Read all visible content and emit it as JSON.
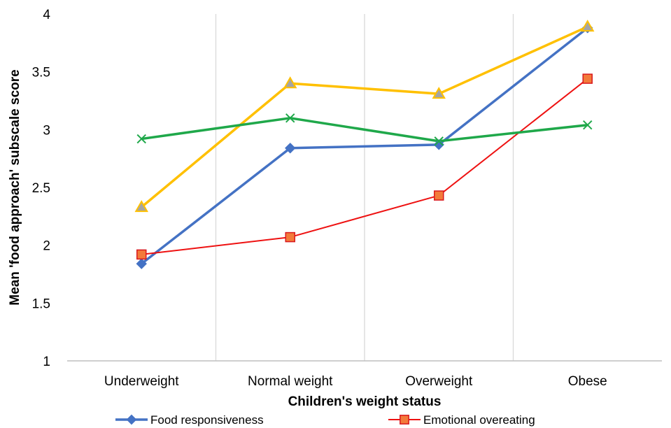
{
  "chart_data": {
    "type": "line",
    "title": "",
    "xlabel": "Children's weight status",
    "ylabel": "Mean 'food approach' subscale score",
    "categories": [
      "Underweight",
      "Normal weight",
      "Overweight",
      "Obese"
    ],
    "ylim": [
      1,
      4
    ],
    "yticks": [
      1,
      1.5,
      2,
      2.5,
      3,
      3.5,
      4
    ],
    "ytick_labels": [
      "1",
      "1.5",
      "2",
      "2.5",
      "3",
      "3.5",
      "4"
    ],
    "grid": "vertical lines between categories",
    "legend_position": "bottom",
    "series": [
      {
        "name": "Food responsiveness",
        "values": [
          1.84,
          2.84,
          2.87,
          3.88
        ],
        "color": "#4472C4",
        "marker": "diamond",
        "width": 3.5
      },
      {
        "name": "Emotional overeating",
        "values": [
          1.92,
          2.07,
          2.43,
          3.44
        ],
        "color": "#EE1111",
        "marker": "square",
        "width": 2
      },
      {
        "name": "",
        "values": [
          2.92,
          3.1,
          2.9,
          3.04
        ],
        "color": "#1FA84A",
        "marker": "x",
        "width": 3.5
      },
      {
        "name": "",
        "values": [
          2.33,
          3.4,
          3.31,
          3.89
        ],
        "color": "#FFC000",
        "marker": "triangle",
        "width": 3.5
      }
    ]
  }
}
